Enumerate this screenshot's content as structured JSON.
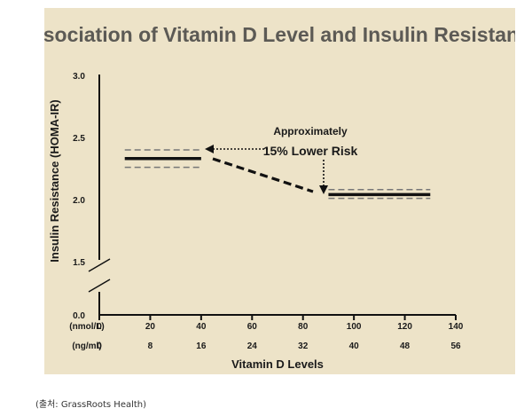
{
  "chart_data": {
    "type": "line",
    "title": "Association of Vitamin D Level and Insulin Resistance",
    "xlabel": "Vitamin D Levels",
    "ylabel": "Insulin Resistance (HOMA-IR)",
    "x_unit_labels": [
      "(nmol/L)",
      "(ng/ml)"
    ],
    "x_ticks_nmol": [
      "0",
      "20",
      "40",
      "60",
      "80",
      "100",
      "120",
      "140"
    ],
    "x_ticks_ngml": [
      "0",
      "8",
      "16",
      "24",
      "32",
      "40",
      "48",
      "56"
    ],
    "y_ticks": [
      "0.0",
      "1.5",
      "2.0",
      "2.5",
      "3.0"
    ],
    "xlim": [
      0,
      140
    ],
    "ylim": [
      0,
      3.0
    ],
    "y_axis_break": true,
    "series": [
      {
        "x_range": [
          10,
          40
        ],
        "value": 2.33,
        "ci_upper": 2.4,
        "ci_lower": 2.26
      },
      {
        "x_range": [
          90,
          130
        ],
        "value": 2.04,
        "ci_upper": 2.08,
        "ci_lower": 2.01
      }
    ],
    "annotation": {
      "line1": "Approximately",
      "line2": "15% Lower Risk"
    }
  },
  "source": "(출처: GrassRoots Health)",
  "colors": {
    "panel": "#ede3c8",
    "line": "#111111",
    "ci": "#777777",
    "title": "#5c5a55"
  }
}
